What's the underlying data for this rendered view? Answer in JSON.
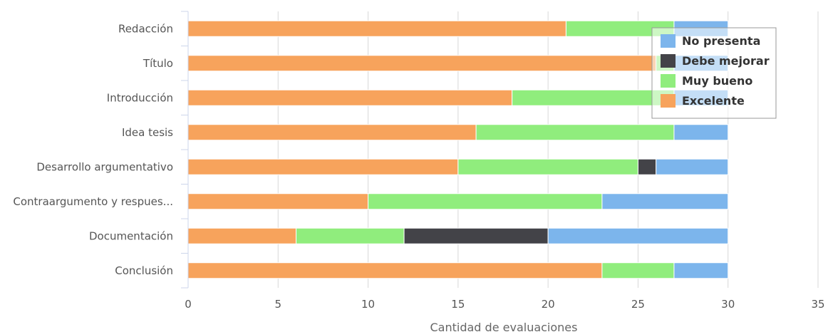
{
  "chart_data": {
    "type": "bar",
    "orientation": "horizontal",
    "stacked": true,
    "categories": [
      "Redacción",
      "Título",
      "Introducción",
      "Idea tesis",
      "Desarrollo argumentativo",
      "Contraargumento y respues...",
      "Documentación",
      "Conclusión"
    ],
    "series": [
      {
        "name": "Excelente",
        "color": "#f7a35c",
        "values": [
          21,
          26,
          18,
          16,
          15,
          10,
          6,
          23
        ]
      },
      {
        "name": "Muy bueno",
        "color": "#90ed7d",
        "values": [
          6,
          1,
          9,
          11,
          10,
          13,
          6,
          4
        ]
      },
      {
        "name": "Debe mejorar",
        "color": "#434348",
        "values": [
          0,
          0,
          0,
          0,
          1,
          0,
          8,
          0
        ]
      },
      {
        "name": "No presenta",
        "color": "#7cb5ec",
        "values": [
          3,
          3,
          3,
          3,
          4,
          7,
          10,
          3
        ]
      }
    ],
    "legend_order": [
      "No presenta",
      "Debe mejorar",
      "Muy bueno",
      "Excelente"
    ],
    "xlabel": "Cantidad de evaluaciones",
    "ylabel": "",
    "xlim": [
      0,
      35
    ],
    "xticks": [
      0,
      5,
      10,
      15,
      20,
      25,
      30,
      35
    ],
    "grid": true,
    "legend_position": "top-right"
  }
}
